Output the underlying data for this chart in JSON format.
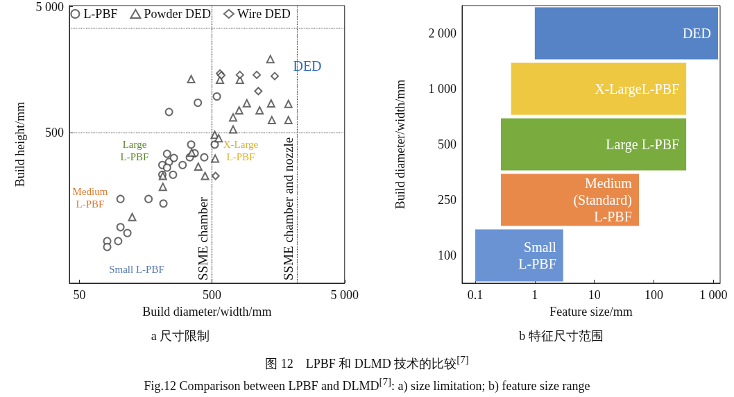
{
  "chart_data": [
    {
      "type": "scatter",
      "title": "a 尺寸限制",
      "xlabel": "Build diameter/width/mm",
      "ylabel": "Build height/mm",
      "log": "xy",
      "grid": false,
      "legend": "top",
      "xlim": [
        42,
        5000
      ],
      "ylim": [
        32,
        5100
      ],
      "xticks": [
        50,
        500,
        {
          "value": 5000,
          "label": "5 000"
        }
      ],
      "yticks": [
        500,
        {
          "value": 5000,
          "label": "5 000"
        }
      ],
      "series": [
        {
          "name": "L-PBF",
          "color": "#444444",
          "marker": "circle",
          "x": [
            81,
            81,
            98,
            102,
            115,
            102,
            166,
            215,
            211,
            237,
            229,
            258,
            211,
            254,
            229,
            300,
            340,
            370,
            437,
            348,
            524,
            237,
            391,
            544
          ],
          "values": [
            69,
            62,
            69,
            89,
            80,
            149,
            149,
            137,
            277,
            293,
            340,
            315,
            232,
            232,
            264,
            277,
            319,
            343,
            319,
            403,
            403,
            730,
            864,
            969
          ]
        },
        {
          "name": "Powder DED",
          "color": "#444444",
          "marker": "triangle",
          "x": [
            348,
            574,
            811,
            721,
            721,
            801,
            524,
            561,
            528,
            351,
            394,
            443,
            213,
            213,
            125,
            1377,
            915,
            1142,
            1395,
            1884,
            1413,
            1884
          ],
          "values": [
            1331,
            1315,
            1315,
            661,
            531,
            752,
            481,
            452,
            312,
            347,
            269,
            227,
            227,
            186,
            107,
            1918,
            857,
            752,
            853,
            845,
            629,
            629
          ]
        },
        {
          "name": "Wire DED",
          "color": "#444444",
          "marker": "diamond",
          "x": [
            574,
            588,
            811,
            1087,
            1486,
            1117,
            532
          ],
          "values": [
            1475,
            1425,
            1437,
            1437,
            1406,
            1069,
            227
          ]
        }
      ],
      "ref_lines": [
        {
          "axis": "y",
          "value": 500,
          "line_style": "dotted"
        },
        {
          "axis": "y",
          "value": 3400,
          "line_style": "dotted"
        },
        {
          "axis": "x",
          "value": 500,
          "label": "SSME chamber",
          "line_style": "dotted"
        },
        {
          "axis": "x",
          "value": 2200,
          "label": "SSME chamber and nozzle",
          "line_style": "dotted"
        }
      ],
      "annotations": [
        "DED",
        "X-Large\nL-PBF",
        "Large\nL-PBF",
        "Medium\nL-PBF",
        "Small L-PBF"
      ]
    },
    {
      "type": "bar",
      "orientation": "horizontal",
      "title": "b 特征尺寸范围",
      "xlabel": "Feature size/mm",
      "ylabel": "Build diameter/width/mm",
      "log": "x",
      "grid": false,
      "xlim": [
        0.06,
        1300
      ],
      "xticks": [
        0.1,
        1,
        10,
        100,
        {
          "value": 1000,
          "label": "1 000"
        }
      ],
      "categories": [
        "2 000",
        "1 000",
        "500",
        "250",
        "100"
      ],
      "base": [
        1,
        0.4,
        0.27,
        0.27,
        0.1
      ],
      "values": [
        1200,
        350,
        350,
        56,
        2.9
      ],
      "colors": [
        "#5583c6",
        "#efc842",
        "#7aab3f",
        "#e8894a",
        "#6a93d4"
      ],
      "annotations": [
        {
          "text": "DED",
          "x": 1200,
          "y": "2 000"
        },
        {
          "text": "X-LargeL-PBF",
          "x": 350,
          "y": "1 000"
        },
        {
          "text": "Large L-PBF",
          "x": 350,
          "y": "500"
        },
        {
          "text": "Medium\n(Standard)\nL-PBF",
          "x": 56,
          "y": "250"
        },
        {
          "text": "Small\nL-PBF",
          "x": 3,
          "y": "100"
        },
        "图 12　LPBF 和 DLMD 技术的比较$^{[7]}$",
        "Fig.12 Comparison between LPBF and DLMD$^{[7]}$: a) size limitation; b) feature size range"
      ]
    }
  ]
}
